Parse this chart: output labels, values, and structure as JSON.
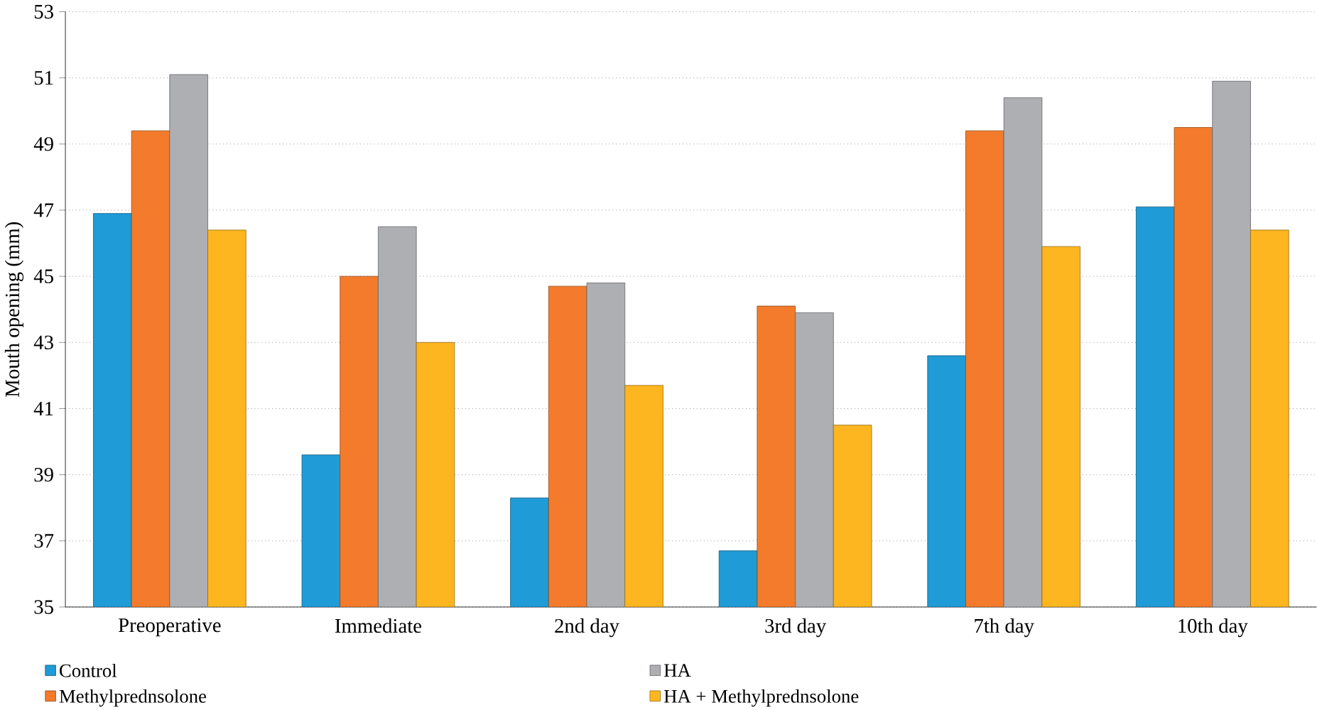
{
  "chart_data": {
    "type": "bar",
    "ylabel": "Mouth opening (mm)",
    "categories": [
      "Preoperative",
      "Immediate",
      "2nd day",
      "3rd day",
      "7th day",
      "10th day"
    ],
    "series": [
      {
        "name": "Control",
        "color": "#1f9bd7",
        "values": [
          46.9,
          39.6,
          38.3,
          36.7,
          42.6,
          47.1
        ]
      },
      {
        "name": "Methylprednsolone",
        "color": "#f47b2b",
        "values": [
          49.4,
          45.0,
          44.7,
          44.1,
          49.4,
          49.5
        ]
      },
      {
        "name": "HA",
        "color": "#adafb2",
        "values": [
          51.1,
          46.5,
          44.8,
          43.9,
          50.4,
          50.9
        ]
      },
      {
        "name": "HA + Methylprednsolone",
        "color": "#fdb620",
        "values": [
          46.4,
          43.0,
          41.7,
          40.5,
          45.9,
          46.4
        ]
      }
    ],
    "ylim": [
      35,
      53
    ],
    "yticks": [
      35,
      37,
      39,
      41,
      43,
      45,
      47,
      49,
      51,
      53
    ],
    "grid": "y",
    "legend": "bottom"
  }
}
